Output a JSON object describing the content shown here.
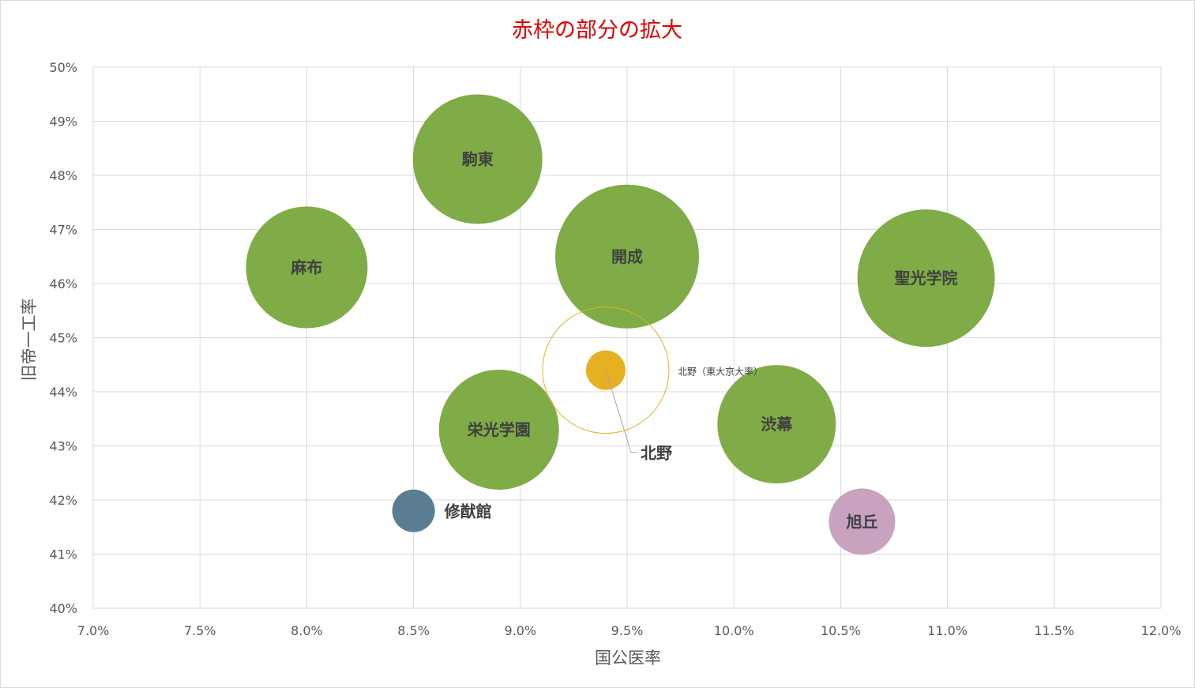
{
  "chart_data": {
    "type": "bubble",
    "title": "赤枠の部分の拡大",
    "title_color": "#e00000",
    "xlabel": "国公医率",
    "ylabel": "旧帝一工率",
    "xlim": [
      0.07,
      0.12
    ],
    "ylim": [
      0.4,
      0.5
    ],
    "x_ticks": [
      {
        "value": 0.07,
        "label": "7.0%"
      },
      {
        "value": 0.075,
        "label": "7.5%"
      },
      {
        "value": 0.08,
        "label": "8.0%"
      },
      {
        "value": 0.085,
        "label": "8.5%"
      },
      {
        "value": 0.09,
        "label": "9.0%"
      },
      {
        "value": 0.095,
        "label": "9.5%"
      },
      {
        "value": 0.1,
        "label": "10.0%"
      },
      {
        "value": 0.105,
        "label": "10.5%"
      },
      {
        "value": 0.11,
        "label": "11.0%"
      },
      {
        "value": 0.115,
        "label": "11.5%"
      },
      {
        "value": 0.12,
        "label": "12.0%"
      }
    ],
    "y_ticks": [
      {
        "value": 0.4,
        "label": "40%"
      },
      {
        "value": 0.41,
        "label": "41%"
      },
      {
        "value": 0.42,
        "label": "42%"
      },
      {
        "value": 0.43,
        "label": "43%"
      },
      {
        "value": 0.44,
        "label": "44%"
      },
      {
        "value": 0.45,
        "label": "45%"
      },
      {
        "value": 0.46,
        "label": "46%"
      },
      {
        "value": 0.47,
        "label": "47%"
      },
      {
        "value": 0.48,
        "label": "48%"
      },
      {
        "value": 0.49,
        "label": "49%"
      },
      {
        "value": 0.5,
        "label": "50%"
      }
    ],
    "grid": true,
    "bubbles": [
      {
        "name": "駒東",
        "x": 0.088,
        "y": 0.483,
        "size": 82,
        "color": "#80ac47",
        "label_position": "center"
      },
      {
        "name": "麻布",
        "x": 0.08,
        "y": 0.463,
        "size": 77,
        "color": "#80ac47",
        "label_position": "center"
      },
      {
        "name": "開成",
        "x": 0.095,
        "y": 0.465,
        "size": 91,
        "color": "#80ac47",
        "label_position": "center"
      },
      {
        "name": "聖光学院",
        "x": 0.109,
        "y": 0.461,
        "size": 87,
        "color": "#80ac47",
        "label_position": "center"
      },
      {
        "name": "栄光学園",
        "x": 0.089,
        "y": 0.433,
        "size": 76,
        "color": "#80ac47",
        "label_position": "center"
      },
      {
        "name": "渋幕",
        "x": 0.102,
        "y": 0.434,
        "size": 75,
        "color": "#80ac47",
        "label_position": "center"
      },
      {
        "name": "修猷館",
        "x": 0.085,
        "y": 0.418,
        "size": 27,
        "color": "#5a7d91",
        "label_position": "right"
      },
      {
        "name": "旭丘",
        "x": 0.106,
        "y": 0.416,
        "size": 42,
        "color": "#c8a2bf",
        "label_position": "center"
      },
      {
        "name": "北野",
        "x": 0.094,
        "y": 0.444,
        "size": 25,
        "color": "#e5b022",
        "label_position": "callout"
      }
    ],
    "annotation": {
      "text": "北野（東大京大率）",
      "bubble": "北野",
      "ring_size": 80,
      "ring_color": "#e5b022"
    }
  }
}
